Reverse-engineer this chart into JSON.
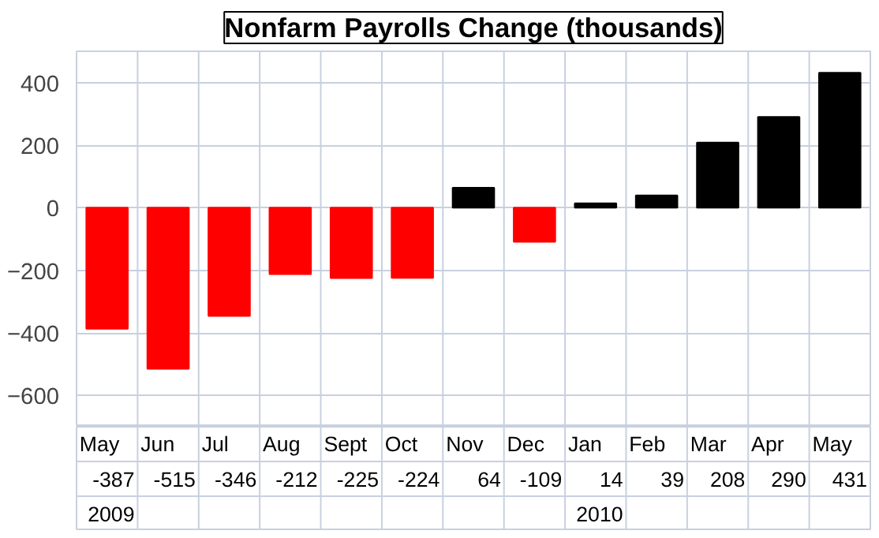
{
  "chart_data": {
    "type": "bar",
    "title": "Nonfarm Payrolls Change (thousands)",
    "categories": [
      "May",
      "Jun",
      "Jul",
      "Aug",
      "Sept",
      "Oct",
      "Nov",
      "Dec",
      "Jan",
      "Feb",
      "Mar",
      "Apr",
      "May"
    ],
    "values": [
      -387,
      -515,
      -346,
      -212,
      -225,
      -224,
      64,
      -109,
      14,
      39,
      208,
      290,
      431
    ],
    "colors": [
      "#ff0000",
      "#ff0000",
      "#ff0000",
      "#ff0000",
      "#ff0000",
      "#ff0000",
      "#000000",
      "#ff0000",
      "#000000",
      "#000000",
      "#000000",
      "#000000",
      "#000000"
    ],
    "ylim": [
      -700,
      500
    ],
    "yticks": [
      -600,
      -400,
      -200,
      0,
      200,
      400
    ],
    "grid": true,
    "data_labels": true,
    "annotations": [
      "2009",
      "2010"
    ]
  }
}
